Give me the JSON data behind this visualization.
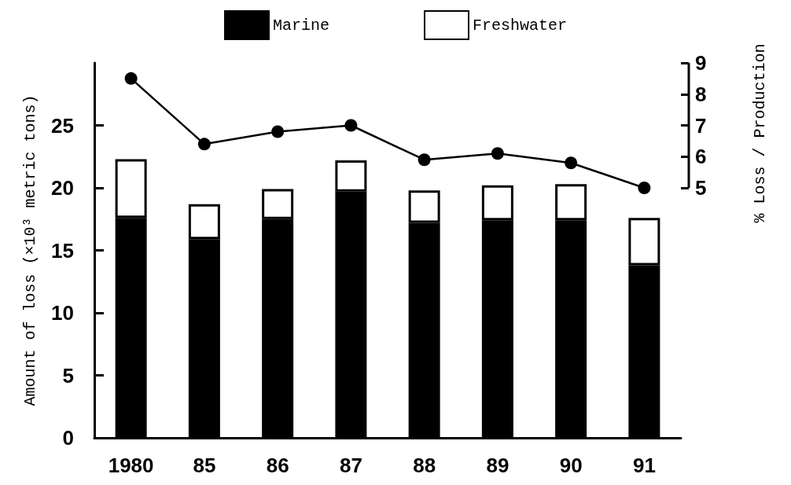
{
  "chart_data": {
    "type": "bar",
    "stacked": true,
    "ylabel": "Amount of loss (×10³ metric tons)",
    "y2label": "% Loss / Production",
    "categories": [
      "1980",
      "85",
      "86",
      "87",
      "88",
      "89",
      "90",
      "91"
    ],
    "series": [
      {
        "name": "Marine",
        "color": "#000000",
        "values": [
          17.6,
          15.9,
          17.5,
          19.7,
          17.2,
          17.4,
          17.4,
          13.8
        ]
      },
      {
        "name": "Freshwater",
        "color": "#ffffff",
        "values": [
          4.7,
          2.8,
          2.4,
          2.5,
          2.6,
          2.8,
          2.9,
          3.8
        ]
      },
      {
        "type": "line",
        "axis": "y2",
        "color": "#000000",
        "values": [
          8.5,
          6.4,
          6.8,
          7.0,
          5.9,
          6.1,
          5.8,
          5.0
        ]
      }
    ],
    "ylim": [
      0,
      30
    ],
    "yticks": [
      0,
      5,
      10,
      15,
      20,
      25
    ],
    "y2lim": [
      -3,
      9
    ],
    "y2ticks": [
      5,
      6,
      7,
      8,
      9
    ],
    "legend": "top",
    "grid": false,
    "marker": "circle",
    "line_style": "solid"
  }
}
